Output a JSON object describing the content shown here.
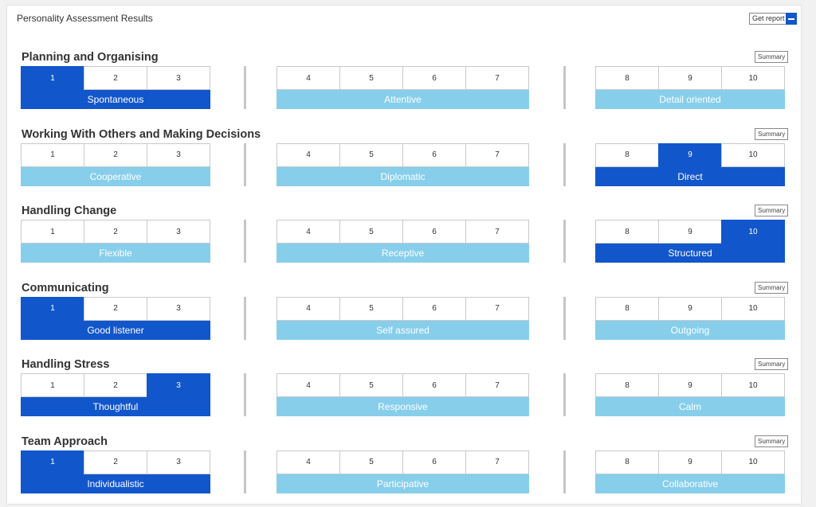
{
  "panel": {
    "title": "Personality Assessment Results"
  },
  "header": {
    "get_report_label": "Get report"
  },
  "summary_label": "Summary",
  "sections": [
    {
      "title": "Planning and Organising",
      "score": 1,
      "groups": [
        {
          "label": "Spontaneous",
          "values": [
            1,
            2,
            3
          ]
        },
        {
          "label": "Attentive",
          "values": [
            4,
            5,
            6,
            7
          ]
        },
        {
          "label": "Detail oriented",
          "values": [
            8,
            9,
            10
          ]
        }
      ]
    },
    {
      "title": "Working With Others and Making Decisions",
      "score": 9,
      "groups": [
        {
          "label": "Cooperative",
          "values": [
            1,
            2,
            3
          ]
        },
        {
          "label": "Diplomatic",
          "values": [
            4,
            5,
            6,
            7
          ]
        },
        {
          "label": "Direct",
          "values": [
            8,
            9,
            10
          ]
        }
      ]
    },
    {
      "title": "Handling Change",
      "score": 10,
      "groups": [
        {
          "label": "Flexible",
          "values": [
            1,
            2,
            3
          ]
        },
        {
          "label": "Receptive",
          "values": [
            4,
            5,
            6,
            7
          ]
        },
        {
          "label": "Structured",
          "values": [
            8,
            9,
            10
          ]
        }
      ]
    },
    {
      "title": "Communicating",
      "score": 1,
      "groups": [
        {
          "label": "Good listener",
          "values": [
            1,
            2,
            3
          ]
        },
        {
          "label": "Self assured",
          "values": [
            4,
            5,
            6,
            7
          ]
        },
        {
          "label": "Outgoing",
          "values": [
            8,
            9,
            10
          ]
        }
      ]
    },
    {
      "title": "Handling Stress",
      "score": 3,
      "groups": [
        {
          "label": "Thoughtful",
          "values": [
            1,
            2,
            3
          ]
        },
        {
          "label": "Responsive",
          "values": [
            4,
            5,
            6,
            7
          ]
        },
        {
          "label": "Calm",
          "values": [
            8,
            9,
            10
          ]
        }
      ]
    },
    {
      "title": "Team Approach",
      "score": 1,
      "groups": [
        {
          "label": "Individualistic",
          "values": [
            1,
            2,
            3
          ]
        },
        {
          "label": "Participative",
          "values": [
            4,
            5,
            6,
            7
          ]
        },
        {
          "label": "Collaborative",
          "values": [
            8,
            9,
            10
          ]
        }
      ]
    }
  ],
  "colors": {
    "selected": "#1256cc",
    "band": "#87ceeb"
  }
}
